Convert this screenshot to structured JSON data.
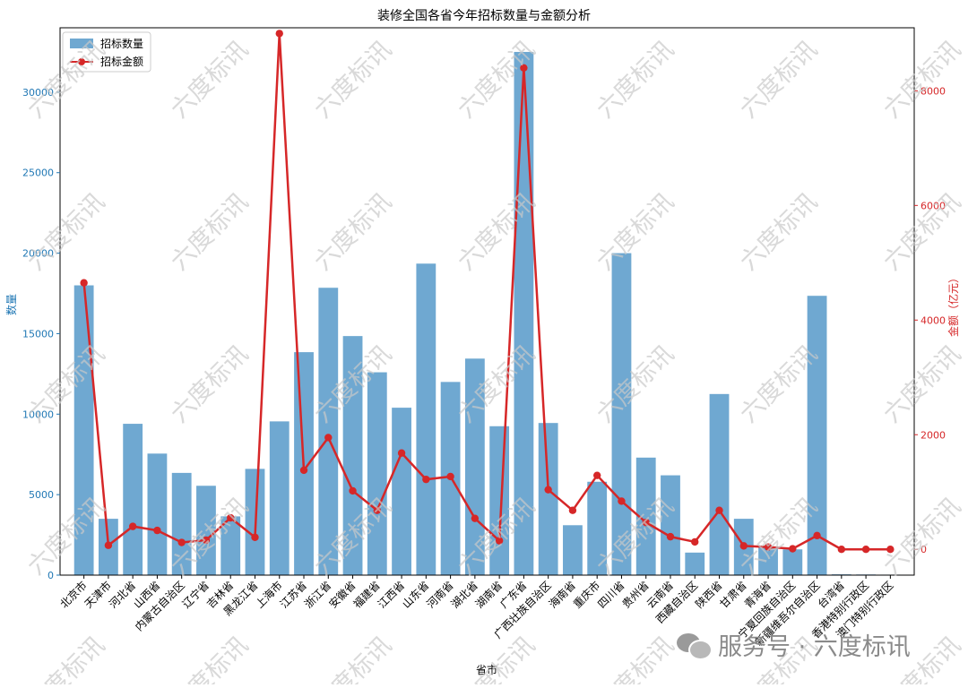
{
  "chart_data": {
    "type": "bar+line",
    "title": "装修全国各省今年招标数量与金额分析",
    "xlabel": "省市",
    "ylabel_left": "数量",
    "ylabel_right": "金额（亿元）",
    "ylim_left": [
      0,
      34000
    ],
    "ylim_right": [
      -450,
      9100
    ],
    "yticks_left": [
      0,
      5000,
      10000,
      15000,
      20000,
      25000,
      30000
    ],
    "yticks_right": [
      0,
      2000,
      4000,
      6000,
      8000
    ],
    "legend_position": "top-left",
    "grid": false,
    "categories": [
      "北京市",
      "天津市",
      "河北省",
      "山西省",
      "内蒙古自治区",
      "辽宁省",
      "吉林省",
      "黑龙江省",
      "上海市",
      "江苏省",
      "浙江省",
      "安徽省",
      "福建省",
      "江西省",
      "山东省",
      "河南省",
      "湖北省",
      "湖南省",
      "广东省",
      "广西壮族自治区",
      "海南省",
      "重庆市",
      "四川省",
      "贵州省",
      "云南省",
      "西藏自治区",
      "陕西省",
      "甘肃省",
      "青海省",
      "宁夏回族自治区",
      "新疆维吾尔自治区",
      "台湾省",
      "香港特别行政区",
      "澳门特别行政区"
    ],
    "series": [
      {
        "name": "招标数量",
        "type": "bar",
        "axis": "left",
        "color": "#6fa8d1",
        "values": [
          18000,
          3500,
          9400,
          7550,
          6350,
          5550,
          3650,
          6600,
          9550,
          13850,
          17850,
          14850,
          12600,
          10400,
          19350,
          12000,
          13450,
          9250,
          32500,
          9450,
          3100,
          5800,
          20000,
          7300,
          6200,
          1400,
          11250,
          3500,
          1700,
          1600,
          17350,
          50,
          40,
          30
        ]
      },
      {
        "name": "招标金额",
        "type": "line",
        "axis": "right",
        "color": "#d62728",
        "values": [
          4650,
          70,
          400,
          330,
          120,
          160,
          550,
          210,
          9000,
          1380,
          1950,
          1020,
          680,
          1680,
          1220,
          1270,
          540,
          150,
          8400,
          1040,
          680,
          1290,
          840,
          470,
          220,
          130,
          680,
          60,
          40,
          10,
          240,
          0,
          0,
          0
        ]
      }
    ]
  },
  "watermark": {
    "text": "六度标讯",
    "color": "#c9c9c9"
  },
  "footer": {
    "prefix": "服务号 · 六度标讯",
    "icon": "wechat-icon"
  }
}
